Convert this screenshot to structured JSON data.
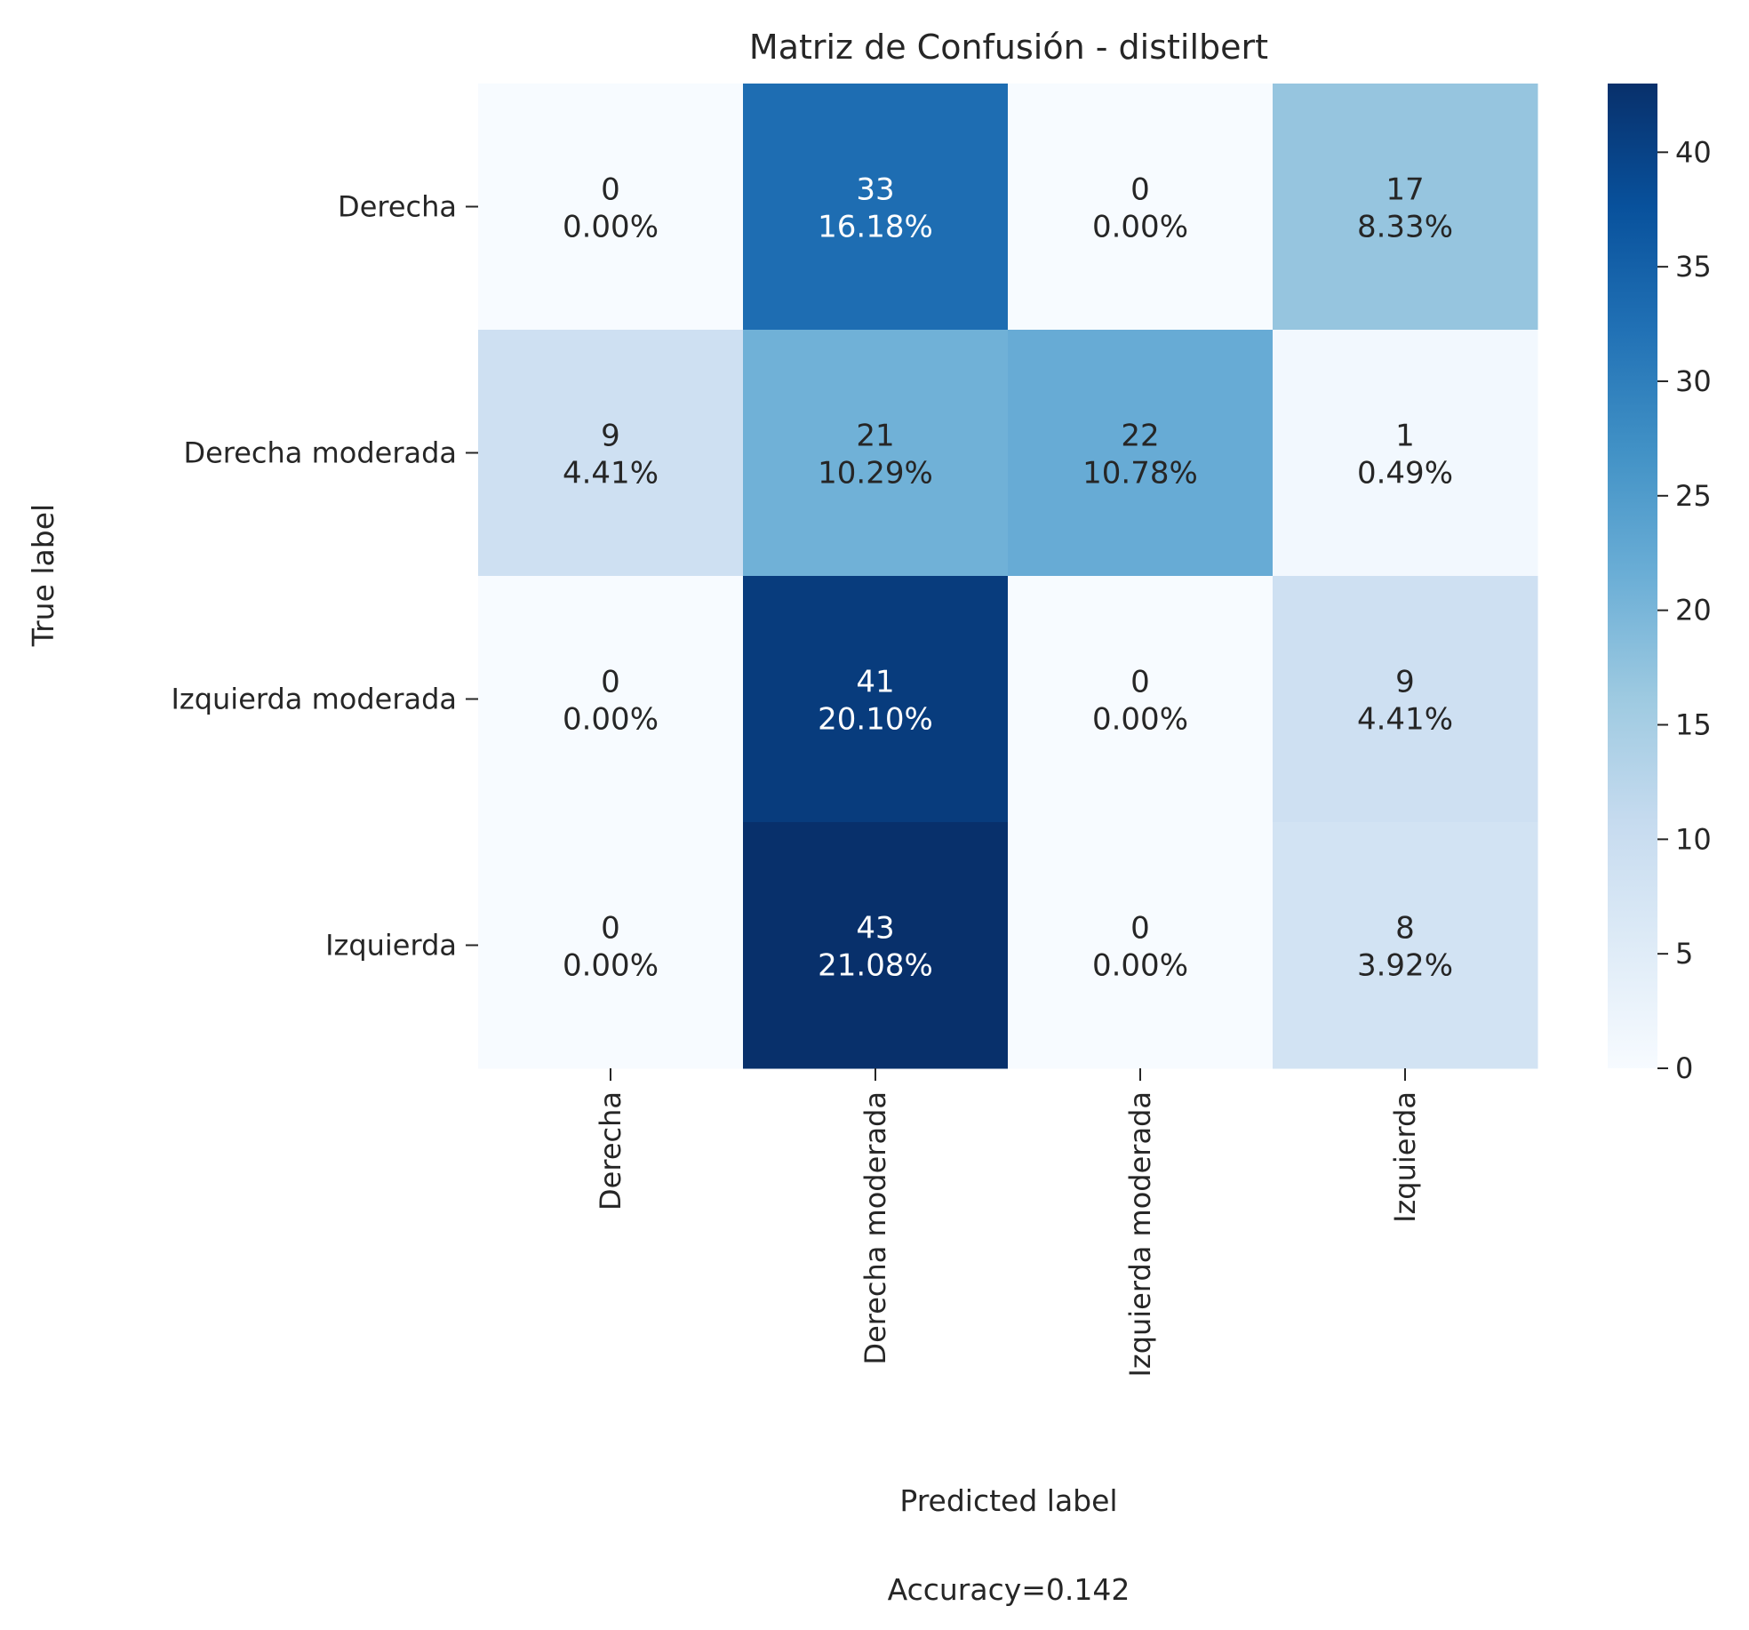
{
  "chart_data": {
    "type": "heatmap",
    "title": "Matriz de Confusión - distilbert",
    "xlabel": "Predicted label",
    "ylabel": "True label",
    "footer": "Accuracy=0.142",
    "row_labels": [
      "Derecha",
      "Derecha moderada",
      "Izquierda moderada",
      "Izquierda"
    ],
    "col_labels": [
      "Derecha",
      "Derecha moderada",
      "Izquierda moderada",
      "Izquierda"
    ],
    "values": [
      [
        0,
        33,
        0,
        17
      ],
      [
        9,
        21,
        22,
        1
      ],
      [
        0,
        41,
        0,
        9
      ],
      [
        0,
        43,
        0,
        8
      ]
    ],
    "percentages": [
      [
        "0.00%",
        "16.18%",
        "0.00%",
        "8.33%"
      ],
      [
        "4.41%",
        "10.29%",
        "10.78%",
        "0.49%"
      ],
      [
        "0.00%",
        "20.10%",
        "0.00%",
        "4.41%"
      ],
      [
        "0.00%",
        "21.08%",
        "0.00%",
        "3.92%"
      ]
    ],
    "colorbar": {
      "min": 0,
      "max": 43,
      "ticks": [
        0,
        5,
        10,
        15,
        20,
        25,
        30,
        35,
        40
      ],
      "colormap": "Blues"
    },
    "grid": false
  }
}
